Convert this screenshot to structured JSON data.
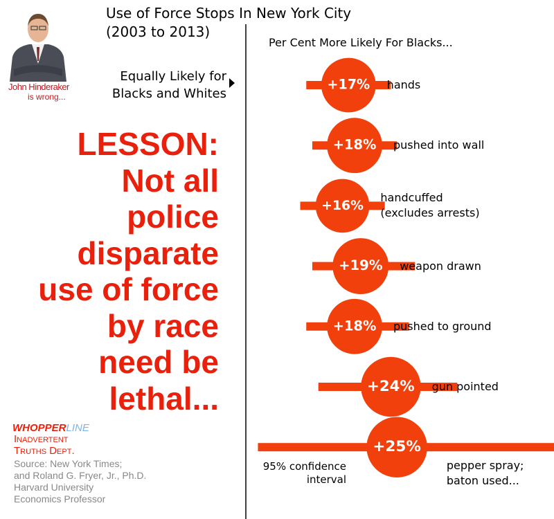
{
  "chart_data": {
    "type": "forest",
    "title": "Use of Force Stops In New York City\n(2003 to 2013)",
    "subtitle": "Per Cent More Likely For Blacks...",
    "reference_label": "Equally Likely for\nBlacks and Whites",
    "ci_label": "95% confidence\ninterval",
    "categories": [
      "hands",
      "pushed into wall",
      "handcuffed\n(excludes arrests)",
      "weapon drawn",
      "pushed to ground",
      "gun pointed",
      "pepper spray;\nbaton used..."
    ],
    "values": [
      17,
      18,
      16,
      19,
      18,
      24,
      25
    ],
    "value_labels": [
      "+17%",
      "+18%",
      "+16%",
      "+19%",
      "+18%",
      "+24%",
      "+25%"
    ],
    "ci_low": [
      10,
      11,
      9,
      11,
      10,
      12,
      2
    ],
    "ci_high": [
      24,
      25,
      23,
      28,
      27,
      35,
      51
    ],
    "xlim": [
      0,
      51
    ],
    "color": "#f2400d"
  },
  "photo_caption": {
    "name": "John Hinderaker",
    "note": "is wrong..."
  },
  "lesson": "LESSON:\nNot all\npolice\ndisparate\nuse of force\nby race\nneed be\nlethal...",
  "logo": {
    "brand_a": "WHOPPER",
    "brand_b": "LINE",
    "line2": "Inadvertent",
    "line3": "Truths Dept."
  },
  "source": "Source: New York Times;\nand Roland G. Fryer, Jr., Ph.D.\nHarvard University\nEconomics Professor"
}
